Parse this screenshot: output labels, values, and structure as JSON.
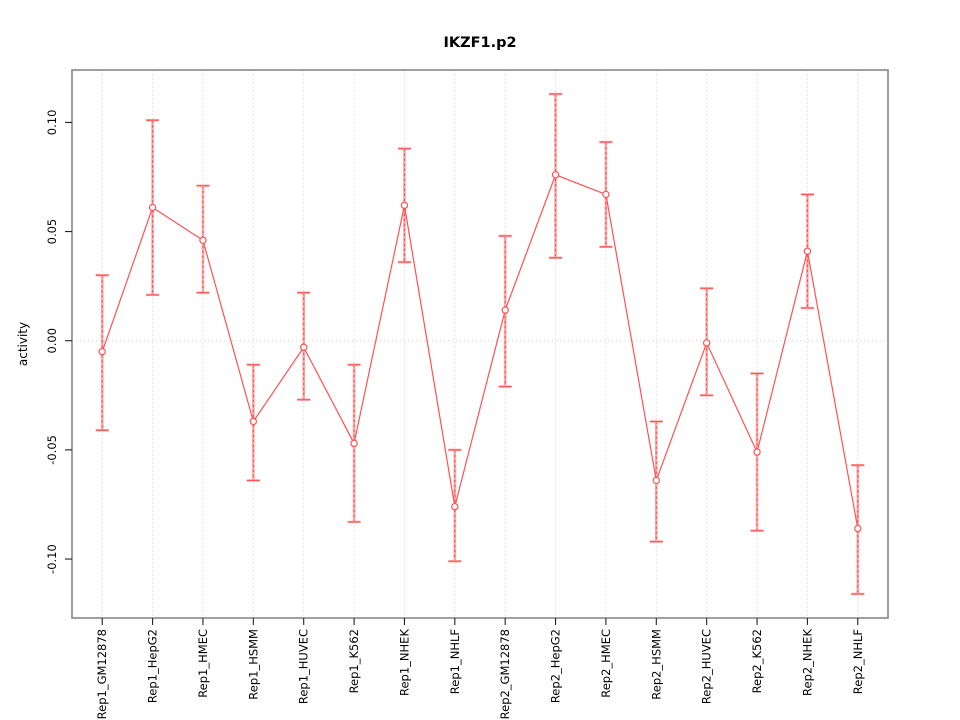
{
  "chart_data": {
    "type": "line",
    "title": "IKZF1.p2",
    "xlabel": "",
    "ylabel": "activity",
    "categories": [
      "Rep1_GM12878",
      "Rep1_HepG2",
      "Rep1_HMEC",
      "Rep1_HSMM",
      "Rep1_HUVEC",
      "Rep1_K562",
      "Rep1_NHEK",
      "Rep1_NHLF",
      "Rep2_GM12878",
      "Rep2_HepG2",
      "Rep2_HMEC",
      "Rep2_HSMM",
      "Rep2_HUVEC",
      "Rep2_K562",
      "Rep2_NHEK",
      "Rep2_NHLF"
    ],
    "series": [
      {
        "name": "activity",
        "marker": "open-circle",
        "values": [
          -0.005,
          0.061,
          0.046,
          -0.037,
          -0.003,
          -0.047,
          0.062,
          -0.076,
          0.014,
          0.076,
          0.067,
          -0.064,
          -0.001,
          -0.051,
          0.041,
          -0.086
        ],
        "err_low": [
          -0.041,
          0.021,
          0.022,
          -0.064,
          -0.027,
          -0.083,
          0.036,
          -0.101,
          -0.021,
          0.038,
          0.043,
          -0.092,
          -0.025,
          -0.087,
          0.015,
          -0.116
        ],
        "err_high": [
          0.03,
          0.101,
          0.071,
          -0.011,
          0.022,
          -0.011,
          0.088,
          -0.05,
          0.048,
          0.113,
          0.091,
          -0.037,
          0.024,
          -0.015,
          0.067,
          -0.057
        ]
      }
    ],
    "ylim": [
      -0.127,
      0.124
    ],
    "yticks": [
      0.1,
      0.05,
      0.0,
      -0.05,
      -0.1
    ],
    "ytick_labels": [
      "0.10",
      "0.05",
      "0.00",
      "-0.05",
      "-0.10"
    ],
    "grid": {
      "vertical_dotted_per_category": true,
      "horizontal_dotted_at_zero": true
    },
    "legend_position": "none",
    "colors": {
      "series_red": "#ff5252",
      "error_dash_red": "#f54848",
      "error_band_pink": "#ffa8a8",
      "grid_gray": "#d4d4d4",
      "frame_gray": "#888888",
      "tick_dark": "#222222",
      "text_black": "#000000",
      "background": "#ffffff"
    }
  }
}
